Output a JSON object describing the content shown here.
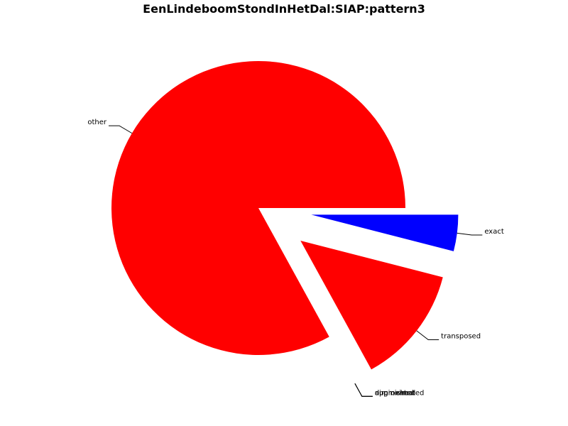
{
  "chart_data": {
    "type": "pie",
    "title": "EenLindeboomStondInHetDal:SIAP:pattern3",
    "slices": [
      {
        "label": "exact",
        "value": 4.0,
        "color": "#0000ff",
        "explode": true
      },
      {
        "label": "transposed",
        "value": 13.0,
        "color": "#ff0000",
        "explode": true
      },
      {
        "label": "approximated",
        "value": 0.0,
        "color": "#ff0000",
        "explode": true
      },
      {
        "label": "augmented",
        "value": 0.0,
        "color": "#ff0000",
        "explode": true
      },
      {
        "label": "diminished",
        "value": 0.0,
        "color": "#ff0000",
        "explode": true
      },
      {
        "label": "other",
        "value": 83.0,
        "color": "#ff0000",
        "explode": false
      }
    ]
  }
}
